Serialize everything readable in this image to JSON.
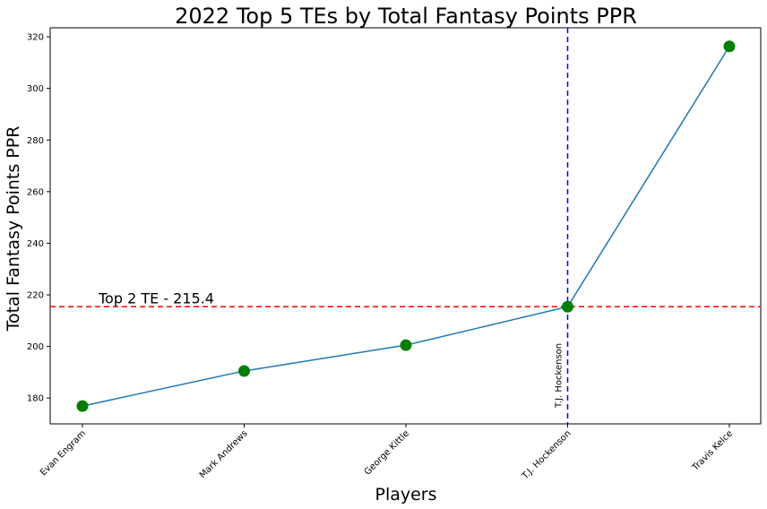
{
  "chart_data": {
    "type": "line",
    "title": "2022 Top 5 TEs by Total Fantasy Points PPR",
    "xlabel": "Players",
    "ylabel": "Total Fantasy Points PPR",
    "categories": [
      "Evan Engram",
      "Mark Andrews",
      "George Kittle",
      "T.J. Hockenson",
      "Travis Kelce"
    ],
    "series": [
      {
        "name": "Total Fantasy Points PPR",
        "values": [
          176.9,
          190.5,
          200.5,
          215.4,
          316.3
        ]
      }
    ],
    "ylim": [
      170,
      323.5
    ],
    "yticks": [
      180,
      200,
      220,
      240,
      260,
      280,
      300,
      320
    ],
    "grid": false,
    "hline": {
      "value": 215.4,
      "label": "Top 2 TE - 215.4",
      "color": "#ff0000"
    },
    "vline": {
      "category": "T.J. Hockenson",
      "label": "T.J. Hockenson",
      "color": "#0000ff"
    },
    "colors": {
      "line": "#1f77b4",
      "marker": "#008000"
    }
  }
}
